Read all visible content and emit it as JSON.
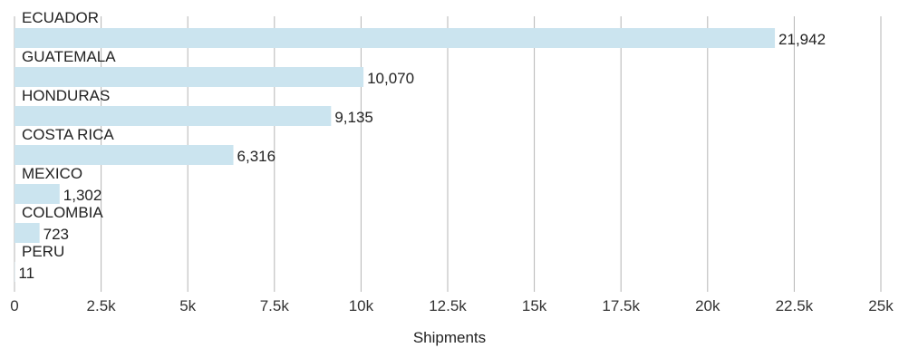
{
  "chart_data": {
    "type": "bar",
    "orientation": "horizontal",
    "categories": [
      "ECUADOR",
      "GUATEMALA",
      "HONDURAS",
      "COSTA RICA",
      "MEXICO",
      "COLOMBIA",
      "PERU"
    ],
    "values": [
      21942,
      10070,
      9135,
      6316,
      1302,
      723,
      11
    ],
    "value_labels": [
      "21,942",
      "10,070",
      "9,135",
      "6,316",
      "1,302",
      "723",
      "11"
    ],
    "xlabel": "Shipments",
    "xlim": [
      0,
      25000
    ],
    "x_ticks": [
      0,
      2500,
      5000,
      7500,
      10000,
      12500,
      15000,
      17500,
      20000,
      22500,
      25000
    ],
    "x_tick_labels": [
      "0",
      "2.5k",
      "5k",
      "7.5k",
      "10k",
      "12.5k",
      "15k",
      "17.5k",
      "20k",
      "22.5k",
      "25k"
    ],
    "grid": "vertical",
    "bar_color": "#cbe4ef",
    "grid_color": "#b5b5b5"
  }
}
